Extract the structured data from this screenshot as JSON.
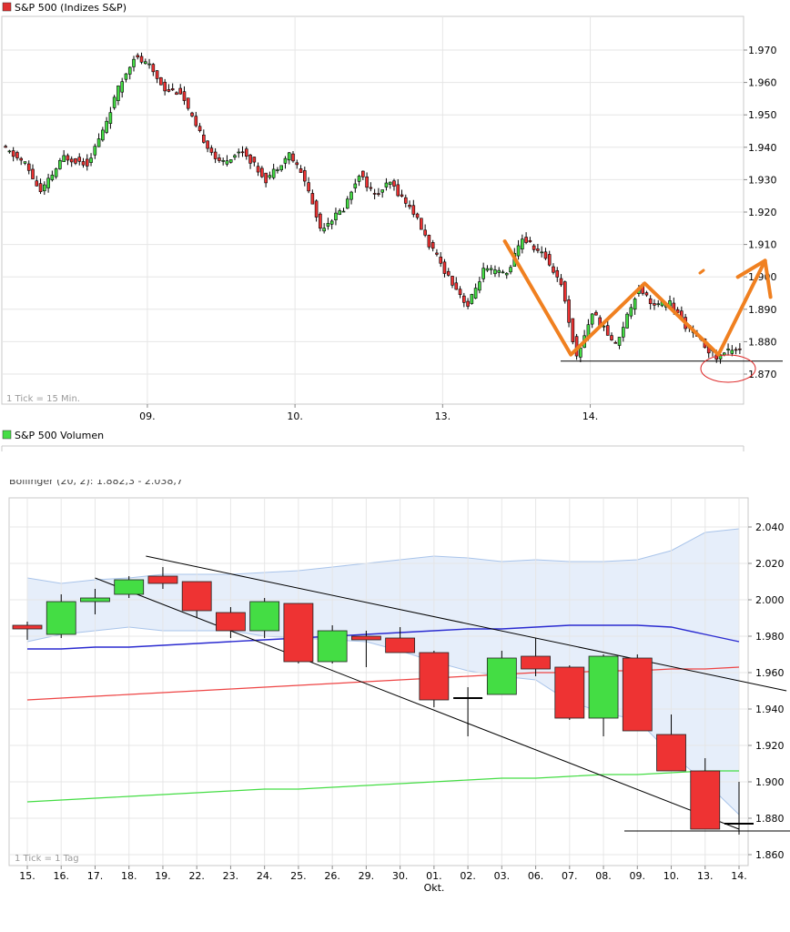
{
  "chart_data": [
    {
      "type": "candlestick",
      "title": "S&P 500 (Indizes S&P)",
      "legend_color": "#e03030",
      "tick_note": "1 Tick = 15 Min.",
      "ylim": [
        1866,
        1980
      ],
      "y_ticks": [
        1870,
        1880,
        1890,
        1900,
        1910,
        1920,
        1930,
        1940,
        1950,
        1960,
        1970
      ],
      "y_tick_labels": [
        "1.870",
        "1.880",
        "1.890",
        "1.900",
        "1.910",
        "1.920",
        "1.930",
        "1.940",
        "1.950",
        "1.960",
        "1.970"
      ],
      "x_tick_labels": [
        "09.",
        "10.",
        "13.",
        "14."
      ],
      "x_tick_index": [
        37,
        75,
        113,
        151
      ],
      "n_bars": 190,
      "colors": {
        "up": "#44dd44",
        "down": "#ee3333"
      },
      "path": [
        [
          0,
          1940
        ],
        [
          6,
          1935
        ],
        [
          10,
          1926
        ],
        [
          16,
          1937
        ],
        [
          22,
          1935
        ],
        [
          26,
          1945
        ],
        [
          30,
          1958
        ],
        [
          34,
          1968
        ],
        [
          38,
          1965
        ],
        [
          42,
          1958
        ],
        [
          46,
          1957
        ],
        [
          50,
          1946
        ],
        [
          56,
          1935
        ],
        [
          62,
          1939
        ],
        [
          68,
          1930
        ],
        [
          74,
          1938
        ],
        [
          78,
          1930
        ],
        [
          82,
          1915
        ],
        [
          88,
          1921
        ],
        [
          92,
          1932
        ],
        [
          96,
          1925
        ],
        [
          100,
          1929
        ],
        [
          106,
          1920
        ],
        [
          110,
          1910
        ],
        [
          114,
          1902
        ],
        [
          120,
          1891
        ],
        [
          124,
          1902
        ],
        [
          130,
          1901
        ],
        [
          134,
          1912
        ],
        [
          140,
          1906
        ],
        [
          144,
          1898
        ],
        [
          148,
          1875
        ],
        [
          152,
          1889
        ],
        [
          158,
          1879
        ],
        [
          164,
          1897
        ],
        [
          168,
          1891
        ],
        [
          172,
          1892
        ],
        [
          176,
          1885
        ],
        [
          180,
          1880
        ],
        [
          184,
          1875
        ],
        [
          188,
          1878
        ]
      ],
      "annotations": {
        "support_line_y": 1874,
        "zigzag": [
          [
            129,
            1911
          ],
          [
            146,
            1876
          ],
          [
            165,
            1898
          ],
          [
            184,
            1876
          ],
          [
            196,
            1905
          ]
        ]
      }
    },
    {
      "type": "bar",
      "title": "S&P 500 Volumen",
      "legend_color": "#44dd44"
    },
    {
      "type": "candlestick",
      "clipped_legend": "Bollinger (20, 2): 1.882,3 - 2.038,7",
      "tick_note": "1 Tick = 1 Tag",
      "ylim": [
        1856,
        2050
      ],
      "y_ticks": [
        1860,
        1880,
        1900,
        1920,
        1940,
        1960,
        1980,
        2000,
        2020,
        2040
      ],
      "y_tick_labels": [
        "1.860",
        "1.880",
        "1.900",
        "1.920",
        "1.940",
        "1.960",
        "1.980",
        "2.000",
        "2.020",
        "2.040"
      ],
      "x_tick_labels": [
        "15.",
        "16.",
        "17.",
        "18.",
        "19.",
        "22.",
        "23.",
        "24.",
        "25.",
        "26.",
        "29.",
        "30.",
        "01.",
        "02.",
        "03.",
        "06.",
        "07.",
        "08.",
        "09.",
        "10.",
        "13.",
        "14."
      ],
      "x_month_label": "Okt.",
      "month_label_index": 12,
      "colors": {
        "up": "#44dd44",
        "down": "#ee3333",
        "bollinger_fill": "#dde8f8",
        "bollinger_edge": "#a9c4ea",
        "sma20": "#2a2ad0",
        "sma50": "#ee4444",
        "sma200": "#44dd44"
      },
      "candles": [
        {
          "o": 1986,
          "h": 1988,
          "l": 1978,
          "c": 1984
        },
        {
          "o": 1981,
          "h": 2003,
          "l": 1979,
          "c": 1999
        },
        {
          "o": 1999,
          "h": 2006,
          "l": 1992,
          "c": 2001
        },
        {
          "o": 2003,
          "h": 2013,
          "l": 2001,
          "c": 2011
        },
        {
          "o": 2013,
          "h": 2018,
          "l": 2006,
          "c": 2009
        },
        {
          "o": 2010,
          "h": 2010,
          "l": 1990,
          "c": 1994
        },
        {
          "o": 1993,
          "h": 1996,
          "l": 1979,
          "c": 1983
        },
        {
          "o": 1983,
          "h": 2001,
          "l": 1979,
          "c": 1999
        },
        {
          "o": 1998,
          "h": 1998,
          "l": 1965,
          "c": 1966
        },
        {
          "o": 1966,
          "h": 1986,
          "l": 1965,
          "c": 1983
        },
        {
          "o": 1980,
          "h": 1983,
          "l": 1963,
          "c": 1978
        },
        {
          "o": 1979,
          "h": 1985,
          "l": 1971,
          "c": 1971
        },
        {
          "o": 1971,
          "h": 1972,
          "l": 1941,
          "c": 1945
        },
        {
          "o": 1946,
          "h": 1952,
          "l": 1925,
          "c": 1946
        },
        {
          "o": 1948,
          "h": 1972,
          "l": 1948,
          "c": 1968
        },
        {
          "o": 1969,
          "h": 1979,
          "l": 1958,
          "c": 1962
        },
        {
          "o": 1963,
          "h": 1964,
          "l": 1934,
          "c": 1935
        },
        {
          "o": 1935,
          "h": 1970,
          "l": 1925,
          "c": 1969
        },
        {
          "o": 1968,
          "h": 1970,
          "l": 1928,
          "c": 1928
        },
        {
          "o": 1926,
          "h": 1937,
          "l": 1906,
          "c": 1906
        },
        {
          "o": 1906,
          "h": 1913,
          "l": 1874,
          "c": 1874
        },
        {
          "o": 1877,
          "h": 1900,
          "l": 1871,
          "c": 1877
        }
      ],
      "sma20": [
        1973,
        1973,
        1974,
        1974,
        1975,
        1976,
        1977,
        1978,
        1979,
        1980,
        1981,
        1982,
        1983,
        1984,
        1984,
        1985,
        1986,
        1986,
        1986,
        1985,
        1981,
        1977
      ],
      "sma50": [
        1945,
        1946,
        1947,
        1948,
        1949,
        1950,
        1951,
        1952,
        1953,
        1954,
        1955,
        1956,
        1957,
        1958,
        1959,
        1960,
        1960,
        1961,
        1961,
        1962,
        1962,
        1963
      ],
      "sma200": [
        1889,
        1890,
        1891,
        1892,
        1893,
        1894,
        1895,
        1896,
        1896,
        1897,
        1898,
        1899,
        1900,
        1901,
        1902,
        1902,
        1903,
        1904,
        1904,
        1905,
        1906,
        1906
      ],
      "bollinger_upper": [
        2012,
        2009,
        2011,
        2012,
        2014,
        2014,
        2014,
        2015,
        2016,
        2018,
        2020,
        2022,
        2024,
        2023,
        2021,
        2022,
        2021,
        2021,
        2022,
        2027,
        2037,
        2039
      ],
      "bollinger_lower": [
        1977,
        1981,
        1983,
        1985,
        1983,
        1983,
        1983,
        1980,
        1979,
        1978,
        1977,
        1972,
        1966,
        1961,
        1958,
        1956,
        1944,
        1938,
        1934,
        1915,
        1900,
        1882
      ],
      "annotations": {
        "trend_upper": [
          [
            3.5,
            2024
          ],
          [
            22.4,
            1950
          ]
        ],
        "trend_lower": [
          [
            2.0,
            2012
          ],
          [
            21.0,
            1874
          ]
        ],
        "support_line_y": 1873
      }
    }
  ]
}
